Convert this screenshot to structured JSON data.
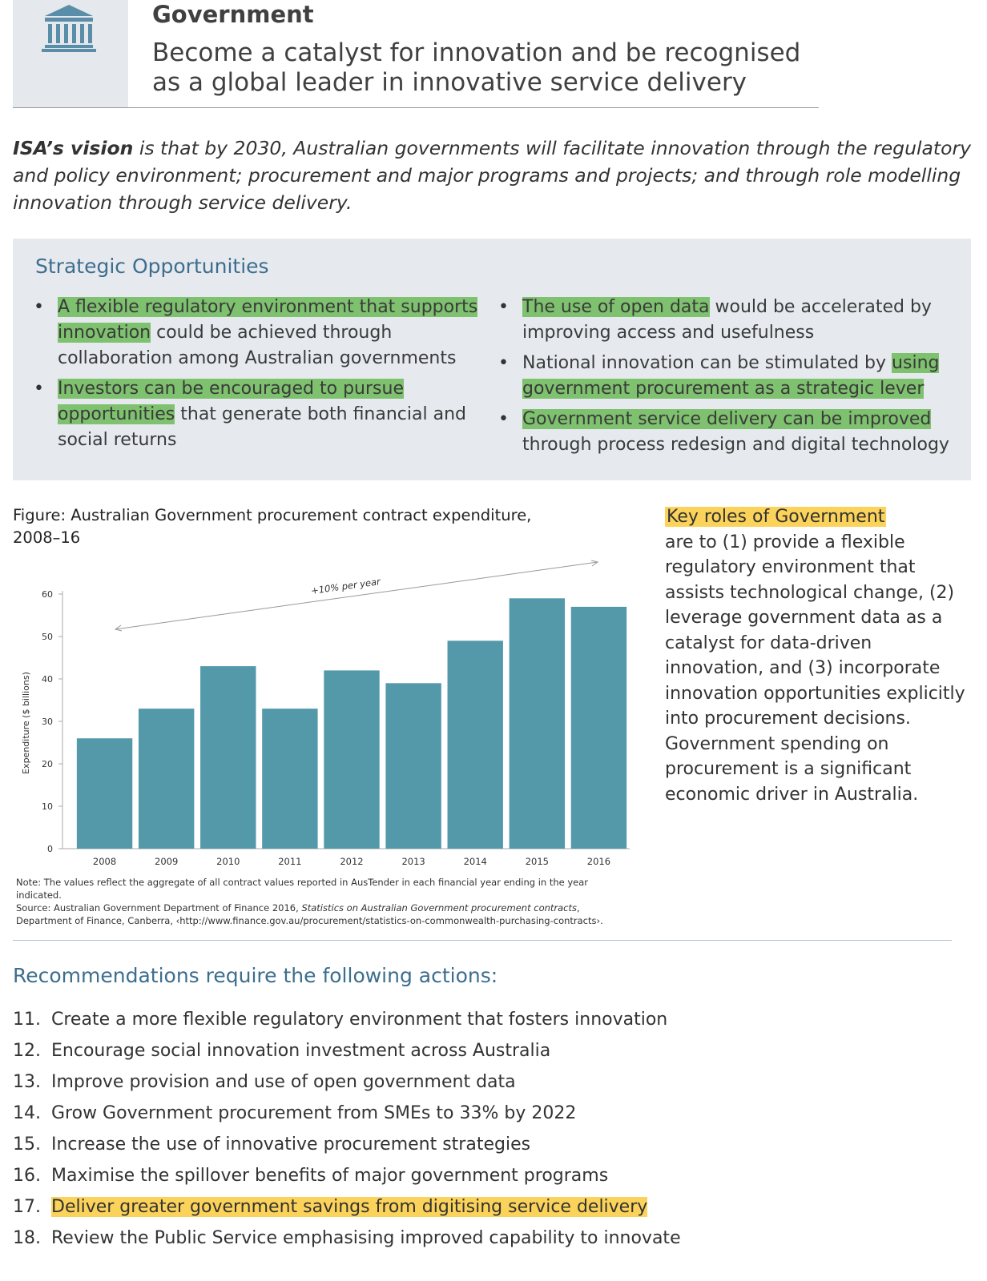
{
  "header": {
    "title": "Government",
    "subtitle_line1": "Become a catalyst for innovation and be recognised",
    "subtitle_line2": "as a global leader in innovative service delivery",
    "icon": "government-building-icon"
  },
  "vision": {
    "lead": "ISA’s vision",
    "text": " is that by 2030, Australian governments will facilitate innovation through the regulatory and policy environment; procurement and major programs and projects; and through role modelling innovation through service delivery."
  },
  "opportunities": {
    "title": "Strategic Opportunities",
    "left": [
      {
        "highlight": "A flexible regulatory environment that supports innovation",
        "rest": " could be achieved through collaboration among Australian governments"
      },
      {
        "highlight": "Investors can be encouraged to pursue opportunities",
        "rest": " that generate both financial and social returns"
      }
    ],
    "right": [
      {
        "pre": "",
        "highlight": "The use of open data",
        "rest": " would be accelerated by improving access and usefulness"
      },
      {
        "pre": "National innovation can be stimulated by ",
        "highlight": "using government procurement as a strategic lever",
        "rest": ""
      },
      {
        "pre": "",
        "highlight": "Government service delivery can be improved",
        "rest": " through process redesign and digital technology"
      }
    ]
  },
  "figure": {
    "title": "Figure: Australian Government procurement contract expenditure, 2008–16",
    "note": "Note: The values reflect the aggregate of all contract values reported in AusTender in each financial year ending in the year indicated.",
    "source_pre": "Source: Australian Government Department of Finance 2016, ",
    "source_italic": "Statistics on Australian Government procurement contracts",
    "source_post": ", Department of Finance, Canberra, ‹http://www.finance.gov.au/procurement/statistics-on-commonwealth-purchasing-contracts›."
  },
  "chart_data": {
    "type": "bar",
    "categories": [
      "2008",
      "2009",
      "2010",
      "2011",
      "2012",
      "2013",
      "2014",
      "2015",
      "2016"
    ],
    "values": [
      26,
      33,
      43,
      33,
      42,
      39,
      49,
      59,
      57
    ],
    "title": "",
    "xlabel": "",
    "ylabel": "Expenditure ($ billions)",
    "ylim": [
      0,
      60
    ],
    "yticks": [
      0,
      10,
      20,
      30,
      40,
      50,
      60
    ],
    "annotation": "+10% per year",
    "bar_color": "#5499aa",
    "grid": false
  },
  "key_roles": {
    "highlight": "Key roles of Government",
    "text": "are to (1) provide a flexible regulatory environment that assists technological change, (2) leverage government data as a catalyst for data-driven innovation, and (3) incorporate innovation opportunities explicitly into procurement decisions. Government spending on procurement is a significant economic driver in Australia."
  },
  "recommendations": {
    "title": "Recommendations require the following actions:",
    "items": [
      {
        "num": "11.",
        "text": "Create a more flexible regulatory environment that fosters innovation",
        "highlight": false
      },
      {
        "num": "12.",
        "text": "Encourage social innovation investment across Australia",
        "highlight": false
      },
      {
        "num": "13.",
        "text": "Improve provision and use of open government data",
        "highlight": false
      },
      {
        "num": "14.",
        "text": "Grow Government procurement from SMEs to 33% by 2022",
        "highlight": false
      },
      {
        "num": "15.",
        "text": "Increase the use of innovative procurement strategies",
        "highlight": false
      },
      {
        "num": "16.",
        "text": "Maximise the spillover benefits of major government programs",
        "highlight": false
      },
      {
        "num": "17.",
        "text": "Deliver greater government savings from digitising service delivery",
        "highlight": true
      },
      {
        "num": "18.",
        "text": "Review the Public Service emphasising improved capability to innovate",
        "highlight": false
      }
    ]
  },
  "colors": {
    "accent_blue": "#3c6e8e",
    "highlight_green": "#7ec16e",
    "highlight_yellow": "#fcd35a",
    "box_grey": "#e6e9ee"
  }
}
